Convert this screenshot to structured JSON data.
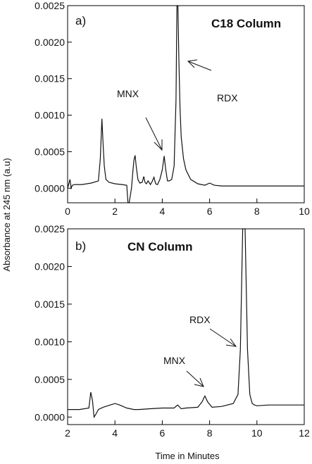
{
  "figure": {
    "ylabel": "Absorbance at 245 nm (a.u)",
    "xlabel": "Time in Minutes"
  },
  "chart_data": [
    {
      "type": "line",
      "panel_label": "a)",
      "title": "C18 Column",
      "xlim": [
        0,
        10
      ],
      "ylim": [
        -0.0002,
        0.0025
      ],
      "xticks": [
        0,
        2,
        4,
        6,
        8,
        10
      ],
      "xtick_labels": [
        "0",
        "2",
        "4",
        "6",
        "8",
        "10"
      ],
      "yticks": [
        0.0,
        0.0005,
        0.001,
        0.0015,
        0.002,
        0.0025
      ],
      "ytick_labels": [
        "0.0000",
        "0.0005",
        "0.0010",
        "0.0015",
        "0.0020",
        "0.0025"
      ],
      "x": [
        0,
        0.1,
        0.15,
        0.2,
        0.3,
        0.6,
        1.0,
        1.3,
        1.38,
        1.45,
        1.5,
        1.55,
        1.62,
        1.75,
        2.0,
        2.3,
        2.5,
        2.55,
        2.6,
        2.7,
        2.75,
        2.8,
        2.85,
        2.9,
        2.97,
        3.05,
        3.15,
        3.22,
        3.27,
        3.33,
        3.4,
        3.5,
        3.57,
        3.65,
        3.72,
        3.8,
        3.9,
        4.0,
        4.08,
        4.15,
        4.22,
        4.3,
        4.4,
        4.5,
        4.58,
        4.62,
        4.66,
        4.7,
        4.75,
        4.8,
        4.9,
        5.0,
        5.2,
        5.5,
        5.8,
        6.0,
        6.2,
        6.5,
        7.0,
        8.0,
        9.0,
        10.0
      ],
      "y": [
        0.0,
        0.00012,
        0.0,
        4e-05,
        5e-05,
        5e-05,
        7e-05,
        0.0001,
        0.0004,
        0.00095,
        0.0006,
        0.0003,
        0.00012,
        8e-05,
        6e-05,
        5e-05,
        4e-05,
        -0.00025,
        -0.00025,
        0.0,
        0.0002,
        0.00038,
        0.00045,
        0.0003,
        0.00012,
        7e-05,
        8e-05,
        0.00016,
        8e-05,
        6e-05,
        0.0001,
        5e-05,
        9e-05,
        0.00015,
        6e-05,
        5e-05,
        0.00012,
        0.00025,
        0.00044,
        0.00025,
        0.0001,
        0.0001,
        0.00012,
        0.0003,
        0.0012,
        0.0025,
        0.0025,
        0.0018,
        0.0011,
        0.0007,
        0.0004,
        0.00025,
        0.00012,
        6e-05,
        4e-05,
        7e-05,
        4e-05,
        3e-05,
        3e-05,
        3e-05,
        3e-05,
        3e-05
      ],
      "annotations": [
        {
          "text": "MNX",
          "x": 4.2,
          "y": 0.00044
        },
        {
          "text": "RDX",
          "x": 4.75,
          "y": 0.0021
        }
      ]
    },
    {
      "type": "line",
      "panel_label": "b)",
      "title": "CN Column",
      "xlim": [
        2,
        12
      ],
      "ylim": [
        -0.0001,
        0.0025
      ],
      "xticks": [
        2,
        4,
        6,
        8,
        10,
        12
      ],
      "xtick_labels": [
        "2",
        "4",
        "6",
        "8",
        "10",
        "12"
      ],
      "yticks": [
        0.0,
        0.0005,
        0.001,
        0.0015,
        0.002,
        0.0025
      ],
      "ytick_labels": [
        "0.0000",
        "0.0005",
        "0.0010",
        "0.0015",
        "0.0020",
        "0.0025"
      ],
      "x": [
        2.0,
        2.5,
        2.9,
        2.98,
        3.05,
        3.12,
        3.2,
        3.3,
        3.5,
        3.8,
        4.0,
        4.2,
        4.5,
        4.8,
        5.0,
        5.5,
        6.0,
        6.5,
        6.65,
        6.8,
        7.0,
        7.5,
        7.68,
        7.8,
        7.92,
        8.1,
        8.5,
        9.0,
        9.2,
        9.3,
        9.4,
        9.5,
        9.6,
        9.7,
        9.8,
        9.9,
        10.0,
        10.5,
        11.0,
        12.0
      ],
      "y": [
        0.0001,
        0.0001,
        0.00012,
        0.00033,
        0.00022,
        0.0,
        4e-05,
        0.0001,
        0.00013,
        0.00016,
        0.00018,
        0.00016,
        0.00012,
        0.0001,
        0.0001,
        0.00011,
        0.00012,
        0.00012,
        0.00016,
        0.00011,
        0.00012,
        0.00013,
        0.0002,
        0.00028,
        0.0002,
        0.00013,
        0.00014,
        0.00018,
        0.0003,
        0.0009,
        0.0025,
        0.0025,
        0.0009,
        0.0003,
        0.00018,
        0.00016,
        0.00015,
        0.00016,
        0.00016,
        0.00016
      ],
      "annotations": [
        {
          "text": "MNX",
          "x": 7.8,
          "y": 0.00028
        },
        {
          "text": "RDX",
          "x": 9.35,
          "y": 0.0009
        }
      ]
    }
  ]
}
